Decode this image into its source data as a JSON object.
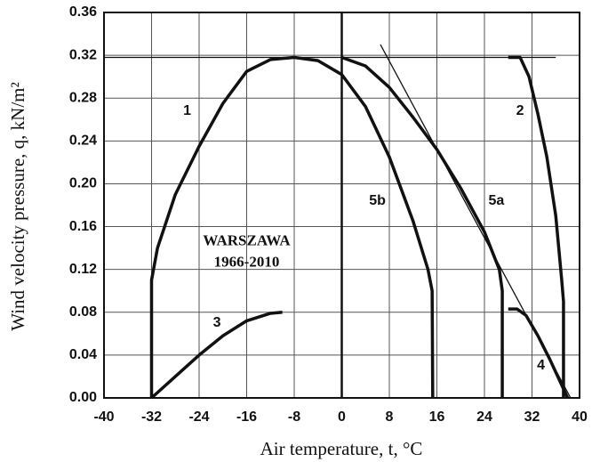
{
  "chart_data": {
    "type": "line",
    "xlabel": "Air temperature, t, °C",
    "ylabel": "Wind velocity pressure, q, kN/m²",
    "xlim": [
      -40,
      40
    ],
    "ylim": [
      0,
      0.36
    ],
    "xticks": [
      -40,
      -32,
      -24,
      -16,
      -8,
      0,
      8,
      16,
      24,
      32,
      40
    ],
    "yticks": [
      {
        "value": 0,
        "label": "0.00"
      },
      0.04,
      0.08,
      0.12,
      0.16,
      {
        "value": 0.2,
        "label": "0.20"
      },
      0.24,
      0.28,
      0.32,
      0.36
    ],
    "grid": true,
    "series": [
      {
        "color": "#111",
        "x": [
          -32,
          -32,
          -31,
          -28,
          -24,
          -20,
          -16,
          -12,
          -8
        ],
        "values": [
          0,
          0.11,
          0.14,
          0.19,
          0.235,
          0.275,
          0.305,
          0.316,
          0.318
        ]
      },
      {
        "color": "#111",
        "x": [
          28,
          30,
          31.5,
          33,
          34.5,
          36,
          37,
          37.3,
          37.3
        ],
        "values": [
          0.318,
          0.318,
          0.3,
          0.265,
          0.225,
          0.17,
          0.11,
          0.09,
          0
        ]
      },
      {
        "color": "#111",
        "x": [
          -32,
          -28,
          -24,
          -20,
          -16,
          -12,
          -10
        ],
        "values": [
          0,
          0.02,
          0.04,
          0.058,
          0.072,
          0.079,
          0.08
        ]
      },
      {
        "color": "#111",
        "x": [
          28,
          29.5,
          31,
          33,
          35,
          36.5,
          38
        ],
        "values": [
          0.083,
          0.083,
          0.077,
          0.058,
          0.036,
          0.018,
          0
        ]
      },
      {
        "color": "#111",
        "x": [
          0,
          4,
          8,
          12,
          16,
          20,
          24,
          26.5,
          27,
          27
        ],
        "values": [
          0.318,
          0.31,
          0.29,
          0.262,
          0.232,
          0.196,
          0.155,
          0.12,
          0.1,
          0
        ]
      },
      {
        "color": "#111",
        "x": [
          -8,
          -4,
          0,
          4,
          8,
          12,
          14.5,
          15.2,
          15.3
        ],
        "values": [
          0.318,
          0.315,
          0.302,
          0.272,
          0.225,
          0.165,
          0.12,
          0.1,
          0
        ]
      },
      {
        "color": "#111",
        "thin": true,
        "x": [
          6.5,
          38.5
        ],
        "values": [
          0.33,
          0
        ]
      },
      {
        "color": "#111",
        "thin": true,
        "x": [
          -40,
          36
        ],
        "values": [
          0.318,
          0.318
        ]
      }
    ],
    "annotations": [
      "1",
      "2",
      "3",
      "4",
      "5a",
      "5b",
      "WARSZAWA",
      "1966-2010"
    ]
  }
}
